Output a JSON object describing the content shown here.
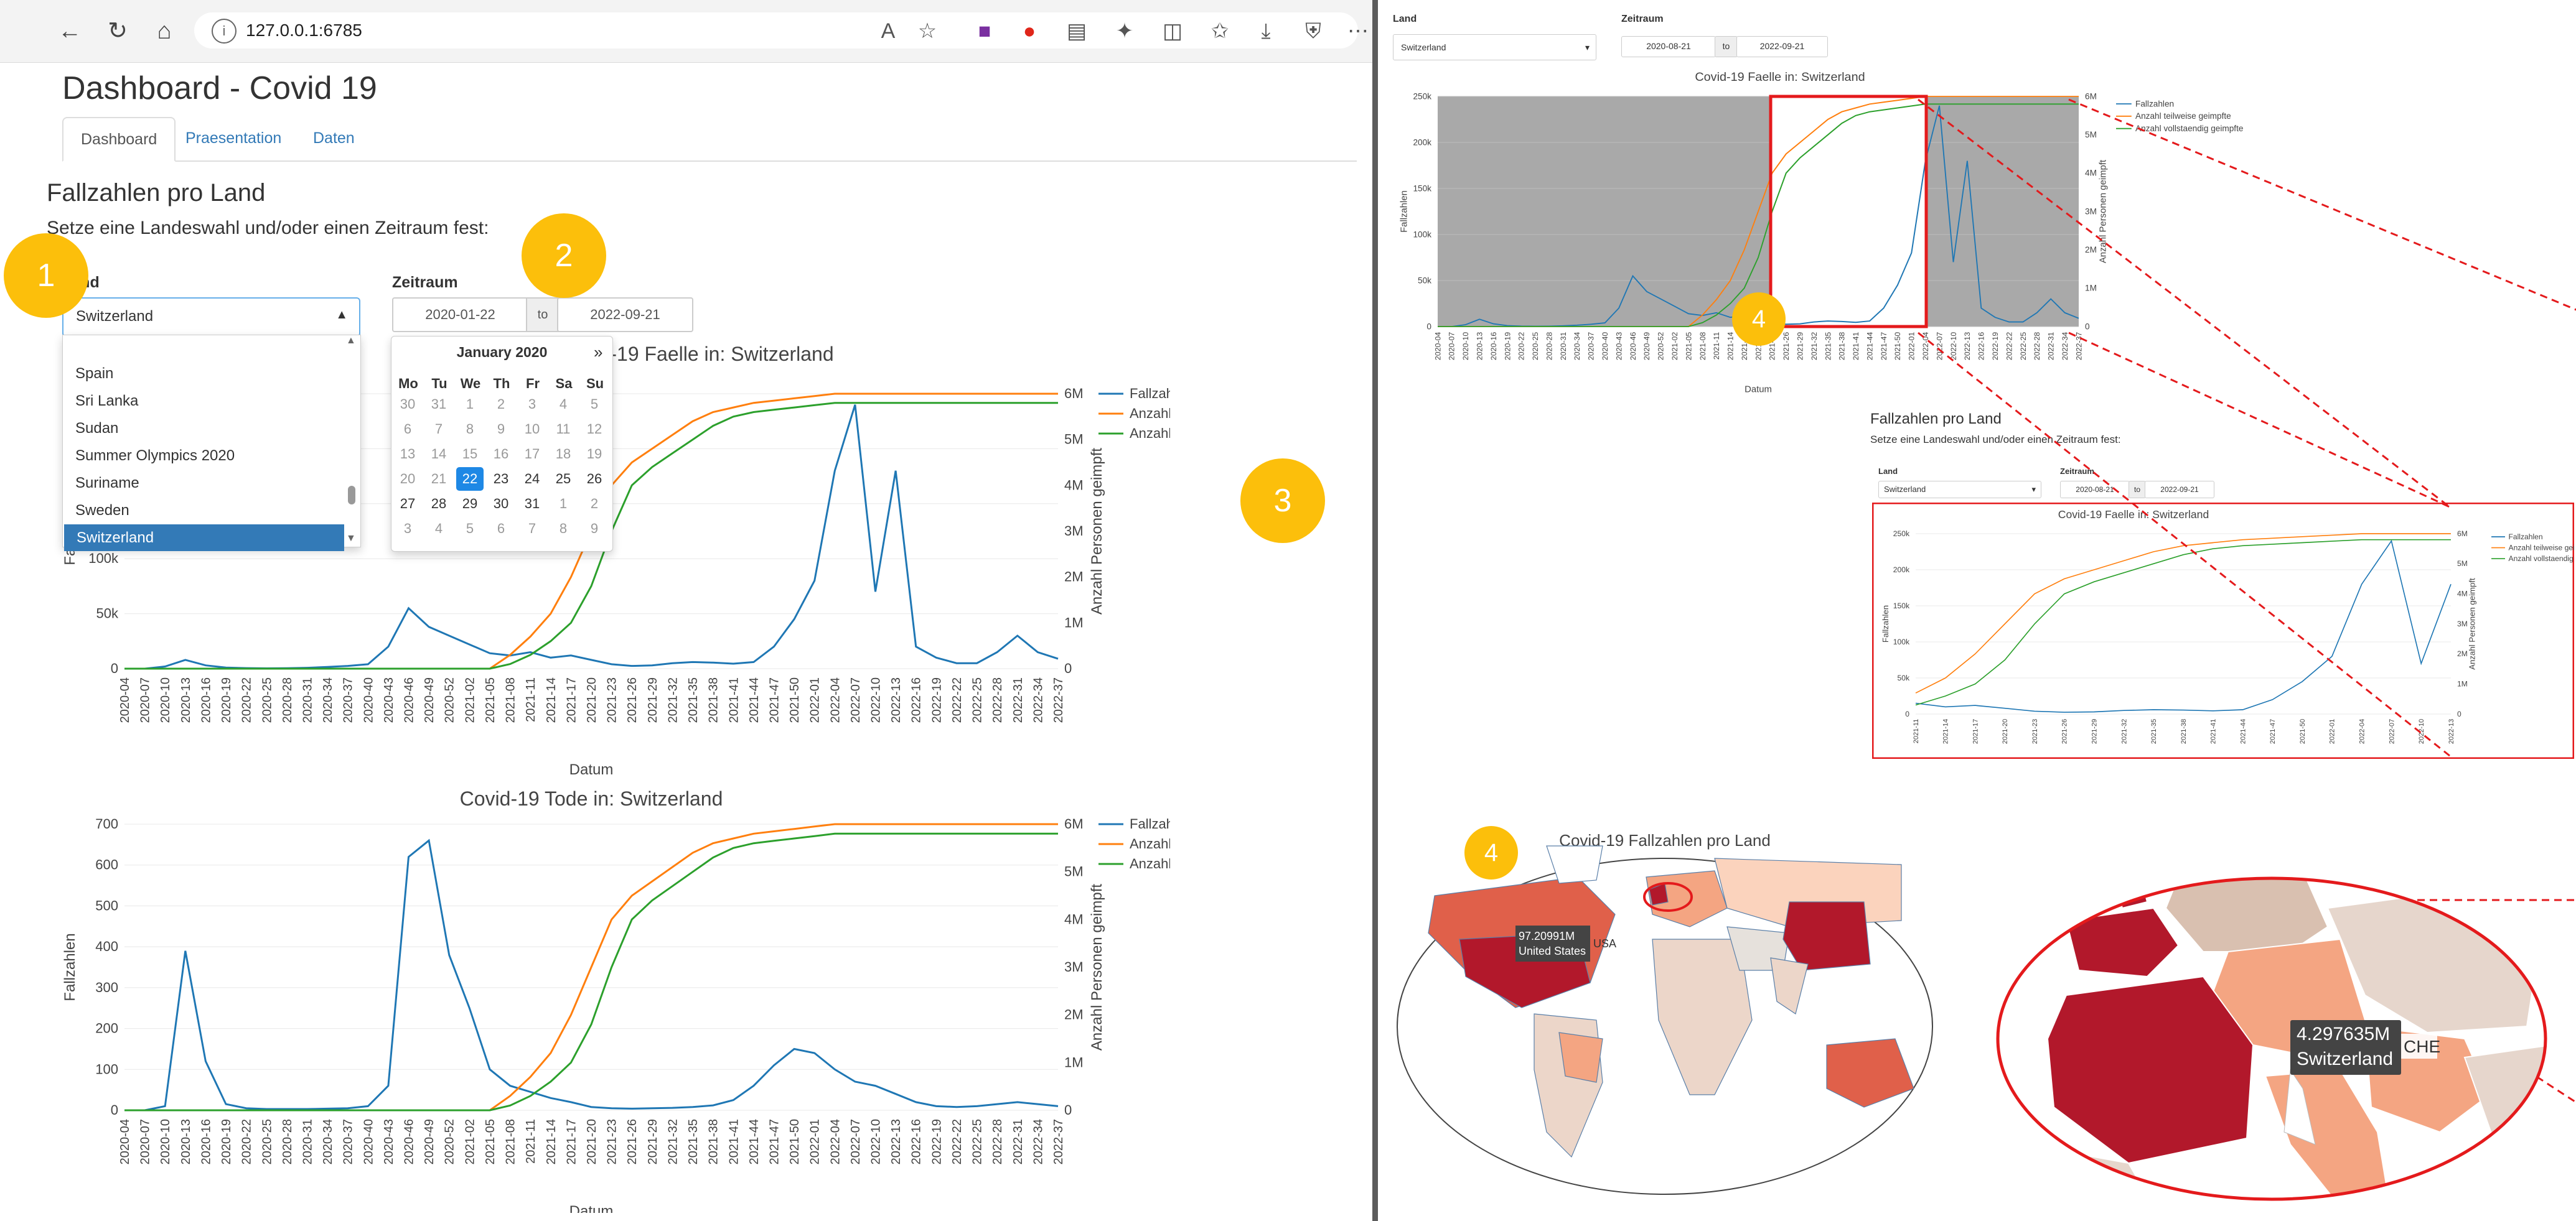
{
  "browser": {
    "url": "127.0.0.1:6785",
    "icons": [
      "back-arrow-icon",
      "reload-icon",
      "home-icon",
      "info-icon",
      "read-aloud-icon",
      "favorite-star-icon",
      "extension-icon",
      "opera-icon",
      "document-icon",
      "puzzle-icon",
      "split-screen-icon",
      "favorites-icon",
      "download-icon",
      "shield-icon",
      "more-icon"
    ]
  },
  "dashboard": {
    "title": "Dashboard - Covid 19",
    "tabs": [
      "Dashboard",
      "Praesentation",
      "Daten"
    ],
    "section_title": "Fallzahlen pro Land",
    "section_subtitle": "Setze eine Landeswahl und/oder einen Zeitraum fest:",
    "land_label": "Land",
    "land_value": "Switzerland",
    "dropdown_options": [
      "Spain",
      "Sri Lanka",
      "Sudan",
      "Summer Olympics 2020",
      "Suriname",
      "Sweden",
      "Switzerland"
    ],
    "zeitraum_label": "Zeitraum",
    "date_start": "2020-01-22",
    "date_to": "to",
    "date_end": "2022-09-21"
  },
  "calendar": {
    "month_label": "January 2020",
    "next": "»",
    "weekdays": [
      "Mo",
      "Tu",
      "We",
      "Th",
      "Fr",
      "Sa",
      "Su"
    ],
    "weeks": [
      [
        [
          "30",
          0
        ],
        [
          "31",
          0
        ],
        [
          "1",
          0
        ],
        [
          "2",
          0
        ],
        [
          "3",
          0
        ],
        [
          "4",
          0
        ],
        [
          "5",
          0
        ]
      ],
      [
        [
          "6",
          0
        ],
        [
          "7",
          0
        ],
        [
          "8",
          0
        ],
        [
          "9",
          0
        ],
        [
          "10",
          0
        ],
        [
          "11",
          0
        ],
        [
          "12",
          0
        ]
      ],
      [
        [
          "13",
          0
        ],
        [
          "14",
          0
        ],
        [
          "15",
          0
        ],
        [
          "16",
          0
        ],
        [
          "17",
          0
        ],
        [
          "18",
          0
        ],
        [
          "19",
          0
        ]
      ],
      [
        [
          "20",
          0
        ],
        [
          "21",
          0
        ],
        [
          "22",
          2
        ],
        [
          "23",
          1
        ],
        [
          "24",
          1
        ],
        [
          "25",
          1
        ],
        [
          "26",
          1
        ]
      ],
      [
        [
          "27",
          1
        ],
        [
          "28",
          1
        ],
        [
          "29",
          1
        ],
        [
          "30",
          1
        ],
        [
          "31",
          1
        ],
        [
          "1",
          0
        ],
        [
          "2",
          0
        ]
      ],
      [
        [
          "3",
          0
        ],
        [
          "4",
          0
        ],
        [
          "5",
          0
        ],
        [
          "6",
          0
        ],
        [
          "7",
          0
        ],
        [
          "8",
          0
        ],
        [
          "9",
          0
        ]
      ]
    ]
  },
  "markers": [
    "1",
    "2",
    "3",
    "4",
    "4",
    "4"
  ],
  "colors": {
    "cases": "#1f77b4",
    "partial": "#ff7f0e",
    "full": "#2ca02c",
    "accent": "#337ab7",
    "marker": "#fcbf0b",
    "highlight": "#e41a1c"
  },
  "chart_data": [
    {
      "type": "line",
      "title": "Covid-19 Faelle in:  Switzerland",
      "title_visible": "-19 Faelle in:  Switzerland",
      "xlabel": "Datum",
      "ylabel": "Fallzahlen",
      "ylabel_right": "Anzahl Personen geimpft",
      "yticks_left": [
        "0",
        "50k",
        "100k",
        "150k",
        "200k",
        "250k"
      ],
      "yticks_right": [
        "0",
        "1M",
        "2M",
        "3M",
        "4M",
        "5M",
        "6M"
      ],
      "ylim": [
        0,
        250000
      ],
      "ylim_right": [
        0,
        6000000
      ],
      "x": [
        "2020-04",
        "2020-07",
        "2020-10",
        "2020-13",
        "2020-16",
        "2020-19",
        "2020-22",
        "2020-25",
        "2020-28",
        "2020-31",
        "2020-34",
        "2020-37",
        "2020-40",
        "2020-43",
        "2020-46",
        "2020-49",
        "2020-52",
        "2021-02",
        "2021-05",
        "2021-08",
        "2021-11",
        "2021-14",
        "2021-17",
        "2021-20",
        "2021-23",
        "2021-26",
        "2021-29",
        "2021-32",
        "2021-35",
        "2021-38",
        "2021-41",
        "2021-44",
        "2021-47",
        "2021-50",
        "2022-01",
        "2022-04",
        "2022-07",
        "2022-10",
        "2022-13",
        "2022-16",
        "2022-19",
        "2022-22",
        "2022-25",
        "2022-28",
        "2022-31",
        "2022-34",
        "2022-37"
      ],
      "series": [
        {
          "name": "Fallzahlen",
          "axis": "left",
          "values": [
            0,
            0,
            2000,
            8000,
            3000,
            1000,
            500,
            300,
            400,
            800,
            1500,
            2500,
            4000,
            20000,
            55000,
            38000,
            30000,
            22000,
            14000,
            12000,
            15000,
            10000,
            12000,
            8000,
            4000,
            2500,
            3000,
            5000,
            6000,
            5500,
            4500,
            6000,
            20000,
            45000,
            80000,
            180000,
            240000,
            70000,
            180000,
            20000,
            10000,
            5000,
            5000,
            15000,
            30000,
            15000,
            9000
          ]
        },
        {
          "name": "Anzahl teilweise geimpfte",
          "axis": "right",
          "values": [
            0,
            0,
            0,
            0,
            0,
            0,
            0,
            0,
            0,
            0,
            0,
            0,
            0,
            0,
            0,
            0,
            0,
            0,
            0,
            300000,
            700000,
            1200000,
            2000000,
            3000000,
            4000000,
            4500000,
            4800000,
            5100000,
            5400000,
            5600000,
            5700000,
            5800000,
            5850000,
            5900000,
            5950000,
            6000000,
            6000000,
            6000000,
            6000000,
            6000000,
            6000000,
            6000000,
            6000000,
            6000000,
            6000000,
            6000000,
            6000000
          ]
        },
        {
          "name": "Anzahl vollstaendig geimpfte",
          "axis": "right",
          "values": [
            0,
            0,
            0,
            0,
            0,
            0,
            0,
            0,
            0,
            0,
            0,
            0,
            0,
            0,
            0,
            0,
            0,
            0,
            0,
            100000,
            300000,
            600000,
            1000000,
            1800000,
            3000000,
            4000000,
            4400000,
            4700000,
            5000000,
            5300000,
            5500000,
            5600000,
            5650000,
            5700000,
            5750000,
            5800000,
            5800000,
            5800000,
            5800000,
            5800000,
            5800000,
            5800000,
            5800000,
            5800000,
            5800000,
            5800000,
            5800000
          ]
        }
      ]
    },
    {
      "type": "line",
      "title": "Covid-19 Tode in:  Switzerland",
      "xlabel": "Datum",
      "ylabel": "Fallzahlen",
      "ylabel_right": "Anzahl Personen geimpft",
      "yticks_left": [
        "0",
        "100",
        "200",
        "300",
        "400",
        "500",
        "600",
        "700"
      ],
      "yticks_right": [
        "0",
        "1M",
        "2M",
        "3M",
        "4M",
        "5M",
        "6M"
      ],
      "ylim": [
        0,
        700
      ],
      "ylim_right": [
        0,
        6000000
      ],
      "x": [
        "2020-04",
        "2020-07",
        "2020-10",
        "2020-13",
        "2020-16",
        "2020-19",
        "2020-22",
        "2020-25",
        "2020-28",
        "2020-31",
        "2020-34",
        "2020-37",
        "2020-40",
        "2020-43",
        "2020-46",
        "2020-49",
        "2020-52",
        "2021-02",
        "2021-05",
        "2021-08",
        "2021-11",
        "2021-14",
        "2021-17",
        "2021-20",
        "2021-23",
        "2021-26",
        "2021-29",
        "2021-32",
        "2021-35",
        "2021-38",
        "2021-41",
        "2021-44",
        "2021-47",
        "2021-50",
        "2022-01",
        "2022-04",
        "2022-07",
        "2022-10",
        "2022-13",
        "2022-16",
        "2022-19",
        "2022-22",
        "2022-25",
        "2022-28",
        "2022-31",
        "2022-34",
        "2022-37"
      ],
      "series": [
        {
          "name": "Fallzahlen",
          "axis": "left",
          "values": [
            0,
            0,
            10,
            390,
            120,
            15,
            5,
            3,
            3,
            3,
            4,
            5,
            10,
            60,
            620,
            660,
            380,
            250,
            100,
            60,
            45,
            30,
            20,
            8,
            5,
            4,
            5,
            6,
            8,
            12,
            25,
            60,
            110,
            150,
            140,
            100,
            70,
            60,
            40,
            20,
            10,
            8,
            10,
            15,
            20,
            15,
            10
          ]
        },
        {
          "name": "Anzahl teilweise geimpfte",
          "axis": "right",
          "values": [
            0,
            0,
            0,
            0,
            0,
            0,
            0,
            0,
            0,
            0,
            0,
            0,
            0,
            0,
            0,
            0,
            0,
            0,
            0,
            300000,
            700000,
            1200000,
            2000000,
            3000000,
            4000000,
            4500000,
            4800000,
            5100000,
            5400000,
            5600000,
            5700000,
            5800000,
            5850000,
            5900000,
            5950000,
            6000000,
            6000000,
            6000000,
            6000000,
            6000000,
            6000000,
            6000000,
            6000000,
            6000000,
            6000000,
            6000000,
            6000000
          ]
        },
        {
          "name": "Anzahl vollstaendig geimpfte",
          "axis": "right",
          "values": [
            0,
            0,
            0,
            0,
            0,
            0,
            0,
            0,
            0,
            0,
            0,
            0,
            0,
            0,
            0,
            0,
            0,
            0,
            0,
            100000,
            300000,
            600000,
            1000000,
            1800000,
            3000000,
            4000000,
            4400000,
            4700000,
            5000000,
            5300000,
            5500000,
            5600000,
            5650000,
            5700000,
            5750000,
            5800000,
            5800000,
            5800000,
            5800000,
            5800000,
            5800000,
            5800000,
            5800000,
            5800000,
            5800000,
            5800000,
            5800000
          ]
        }
      ]
    },
    {
      "type": "heatmap",
      "title": "Covid-19 Fallzahlen pro Land",
      "tooltips": [
        {
          "value": "97.20991M",
          "country": "United States",
          "code": "USA"
        },
        {
          "value": "4.297635M",
          "country": "Switzerland",
          "code": "CHE"
        }
      ]
    }
  ],
  "right_panel": {
    "land_label": "Land",
    "land_value": "Switzerland",
    "zeitraum_label": "Zeitraum",
    "date_start": "2020-08-21",
    "date_to": "to",
    "date_end": "2022-09-21",
    "chart_title": "Covid-19 Faelle in:  Switzerland",
    "xlabel": "Datum",
    "ylabel": "Fallzahlen",
    "ylabel_right": "Anzahl Personen geimpft",
    "yticks_left": [
      "0",
      "50k",
      "100k",
      "150k",
      "200k",
      "250k"
    ],
    "yticks_right": [
      "0",
      "1M",
      "2M",
      "3M",
      "4M",
      "5M",
      "6M"
    ],
    "legend": [
      "Fallzahlen",
      "Anzahl teilweise geimpfte",
      "Anzahl vollstaendig geimpfte"
    ],
    "zoom": {
      "section_title": "Fallzahlen pro Land",
      "section_subtitle": "Setze eine Landeswahl und/oder einen Zeitraum fest:",
      "land_label": "Land",
      "land_value": "Switzerland",
      "zeitraum_label": "Zeitraum",
      "date_start": "2020-08-21",
      "date_to": "to",
      "date_end": "2022-09-21",
      "chart_title": "Covid-19 Faelle in:  Switzerland",
      "xlabel": "Datum",
      "ylabel": "Fallzahlen",
      "ylabel_right": "Anzahl Personen geimpft",
      "yticks_left": [
        "0",
        "50k",
        "100k",
        "150k",
        "200k",
        "250k"
      ],
      "yticks_right": [
        "0",
        "1M",
        "2M",
        "3M",
        "4M",
        "5M",
        "6M"
      ],
      "legend": [
        "Fallzahlen",
        "Anzahl teilweise geimpfte",
        "Anzahl vollstaendig geimpfte"
      ]
    }
  }
}
